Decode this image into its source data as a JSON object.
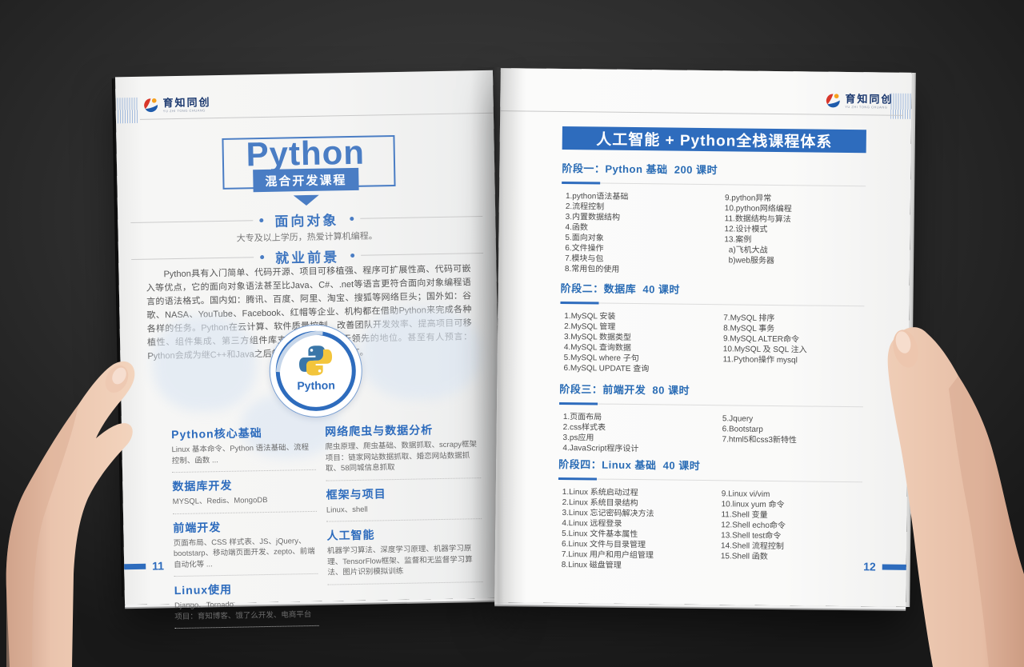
{
  "colors": {
    "accent": "#2e6cbd",
    "title_blue": "#4a7dc4",
    "brand_navy": "#1d3a70",
    "paper": "#f5f5f4"
  },
  "brand": {
    "name": "育知同创",
    "tagline": "YU ZHI TONG CHUANG"
  },
  "left_page": {
    "title": "Python",
    "badge": "混合开发课程",
    "audience_heading": "面向对象",
    "audience_text": "大专及以上学历，热爱计算机编程。",
    "prospect_heading": "就业前景",
    "intro": "Python具有入门简单、代码开源、项目可移植强、程序可扩展性高、代码可嵌入等优点，它的面向对象语法甚至比Java、C#、.net等语言更符合面向对象编程语言的语法格式。国内如：腾讯、百度、阿里、淘宝、搜狐等网络巨头；国外如：谷歌、NASA、YouTube、Facebook、红帽等企业、机构都在借助Python来完成各种各样的任务。Python在云计算、软件质量控制、改善团队开发效率、提高项目可移植性、组件集成、第三方组件库支持等方面都处于领先的地位。甚至有人预言：Python会成为继C++和Java之后的第三种主流编程语言。",
    "logo_label": "Python",
    "columns_left": [
      {
        "title": "Python核心基础",
        "lines": [
          "Linux 基本命令、Python 语法基础、流程控制、函数 ..."
        ]
      },
      {
        "title": "数据库开发",
        "lines": [
          "MYSQL、Redis、MongoDB"
        ]
      },
      {
        "title": "前端开发",
        "lines": [
          "页面布局、CSS 样式表、JS、jQuery、bootstarp、移动端页面开发、zepto、前端自动化等 ..."
        ]
      },
      {
        "title": "Linux使用",
        "lines": [
          "Django、Tornado",
          "项目：育知博客、饿了么开发、电商平台"
        ]
      }
    ],
    "columns_right": [
      {
        "title": "网络爬虫与数据分析",
        "lines": [
          "爬虫原理、爬虫基础、数据抓取、scrapy框架",
          "项目：链家网站数据抓取、婚恋网站数据抓取、58同城信息抓取"
        ]
      },
      {
        "title": "框架与项目",
        "lines": [
          "Linux、shell"
        ]
      },
      {
        "title": "人工智能",
        "lines": [
          "机器学习算法、深度学习原理、机器学习原理、TensorFlow框架、监督和无监督学习算法、图片识别模拟训练"
        ]
      }
    ],
    "page_number": "11"
  },
  "right_page": {
    "banner": "人工智能 + Python全栈课程体系",
    "stages": [
      {
        "title": "阶段一：Python 基础  200 课时",
        "left": [
          "1.python语法基础",
          "2.流程控制",
          "3.内置数据结构",
          "4.函数",
          "5.面向对象",
          "6.文件操作",
          "7.模块与包",
          "8.常用包的使用"
        ],
        "right": [
          "9.python异常",
          "10.python网络编程",
          "11.数据结构与算法",
          "12.设计模式",
          "13.案例",
          "  a)飞机大战",
          "  b)web服务器"
        ]
      },
      {
        "title": "阶段二：数据库  40 课时",
        "left": [
          "1.MySQL 安装",
          "2.MySQL 管理",
          "3.MySQL 数据类型",
          "4.MySQL 查询数据",
          "5.MySQL where 子句",
          "6.MySQL UPDATE 查询"
        ],
        "right": [
          "7.MySQL 排序",
          "8.MySQL 事务",
          "9.MySQL ALTER命令",
          "10.MySQL 及 SQL 注入",
          "11.Python操作 mysql"
        ]
      },
      {
        "title": "阶段三：前端开发  80 课时",
        "left": [
          "1.页面布局",
          "2.css样式表",
          "3.ps应用",
          "4.JavaScript程序设计"
        ],
        "right": [
          "5.Jquery",
          "6.Bootstarp",
          "7.html5和css3新特性"
        ]
      },
      {
        "title": "阶段四：Linux 基础  40 课时",
        "left": [
          "1.Linux 系统启动过程",
          "2.Linux 系统目录结构",
          "3.Linux 忘记密码解决方法",
          "4.Linux 远程登录",
          "5.Linux 文件基本属性",
          "6.Linux 文件与目录管理",
          "7.Linux 用户和用户组管理",
          "8.Linux 磁盘管理"
        ],
        "right": [
          "9.Linux vi/vim",
          "10.linux yum 命令",
          "11.Shell 变量",
          "12.Shell echo命令",
          "13.Shell test命令",
          "14.Shell 流程控制",
          "15.Shell 函数"
        ]
      }
    ],
    "page_number": "12"
  }
}
